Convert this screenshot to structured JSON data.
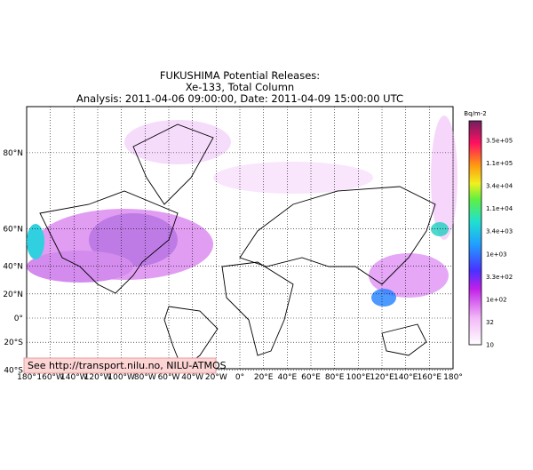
{
  "title": [
    "FUKUSHIMA Potential Releases:",
    "Xe-133, Total Column",
    "Analysis: 2011-04-06  09:00:00, Date: 2011-04-09  15:00:00 UTC"
  ],
  "map": {
    "lat_labels": [
      {
        "value": 80,
        "label": "80°N"
      },
      {
        "value": 60,
        "label": "60°N"
      },
      {
        "value": 40,
        "label": "40°N"
      },
      {
        "value": 20,
        "label": "20°N"
      },
      {
        "value": 0,
        "label": "0°"
      },
      {
        "value": -20,
        "label": "20°S"
      },
      {
        "value": -40,
        "label": "40°S"
      }
    ],
    "lon_labels": [
      {
        "value": -180,
        "label": "180°"
      },
      {
        "value": -160,
        "label": "160°W"
      },
      {
        "value": -140,
        "label": "140°W"
      },
      {
        "value": -120,
        "label": "120°W"
      },
      {
        "value": -100,
        "label": "100°W"
      },
      {
        "value": -80,
        "label": "80°W"
      },
      {
        "value": -60,
        "label": "60°W"
      },
      {
        "value": -40,
        "label": "40°W"
      },
      {
        "value": -20,
        "label": "20°W"
      },
      {
        "value": 0,
        "label": "0°"
      },
      {
        "value": 20,
        "label": "20°E"
      },
      {
        "value": 40,
        "label": "40°E"
      },
      {
        "value": 60,
        "label": "60°E"
      },
      {
        "value": 80,
        "label": "80°E"
      },
      {
        "value": 100,
        "label": "100°E"
      },
      {
        "value": 120,
        "label": "120°E"
      },
      {
        "value": 140,
        "label": "140°E"
      },
      {
        "value": 160,
        "label": "160°E"
      },
      {
        "value": 180,
        "label": "180°"
      }
    ],
    "credit": "See http://transport.nilu.no, NILU-ATMOS"
  },
  "colorbar": {
    "unit": "Bq/m-2",
    "labels": [
      "3.5e+05",
      "1.1e+05",
      "3.4e+04",
      "1.1e+04",
      "3.4e+03",
      "1e+03",
      "3.3e+02",
      "1e+02",
      "32",
      "10"
    ]
  }
}
